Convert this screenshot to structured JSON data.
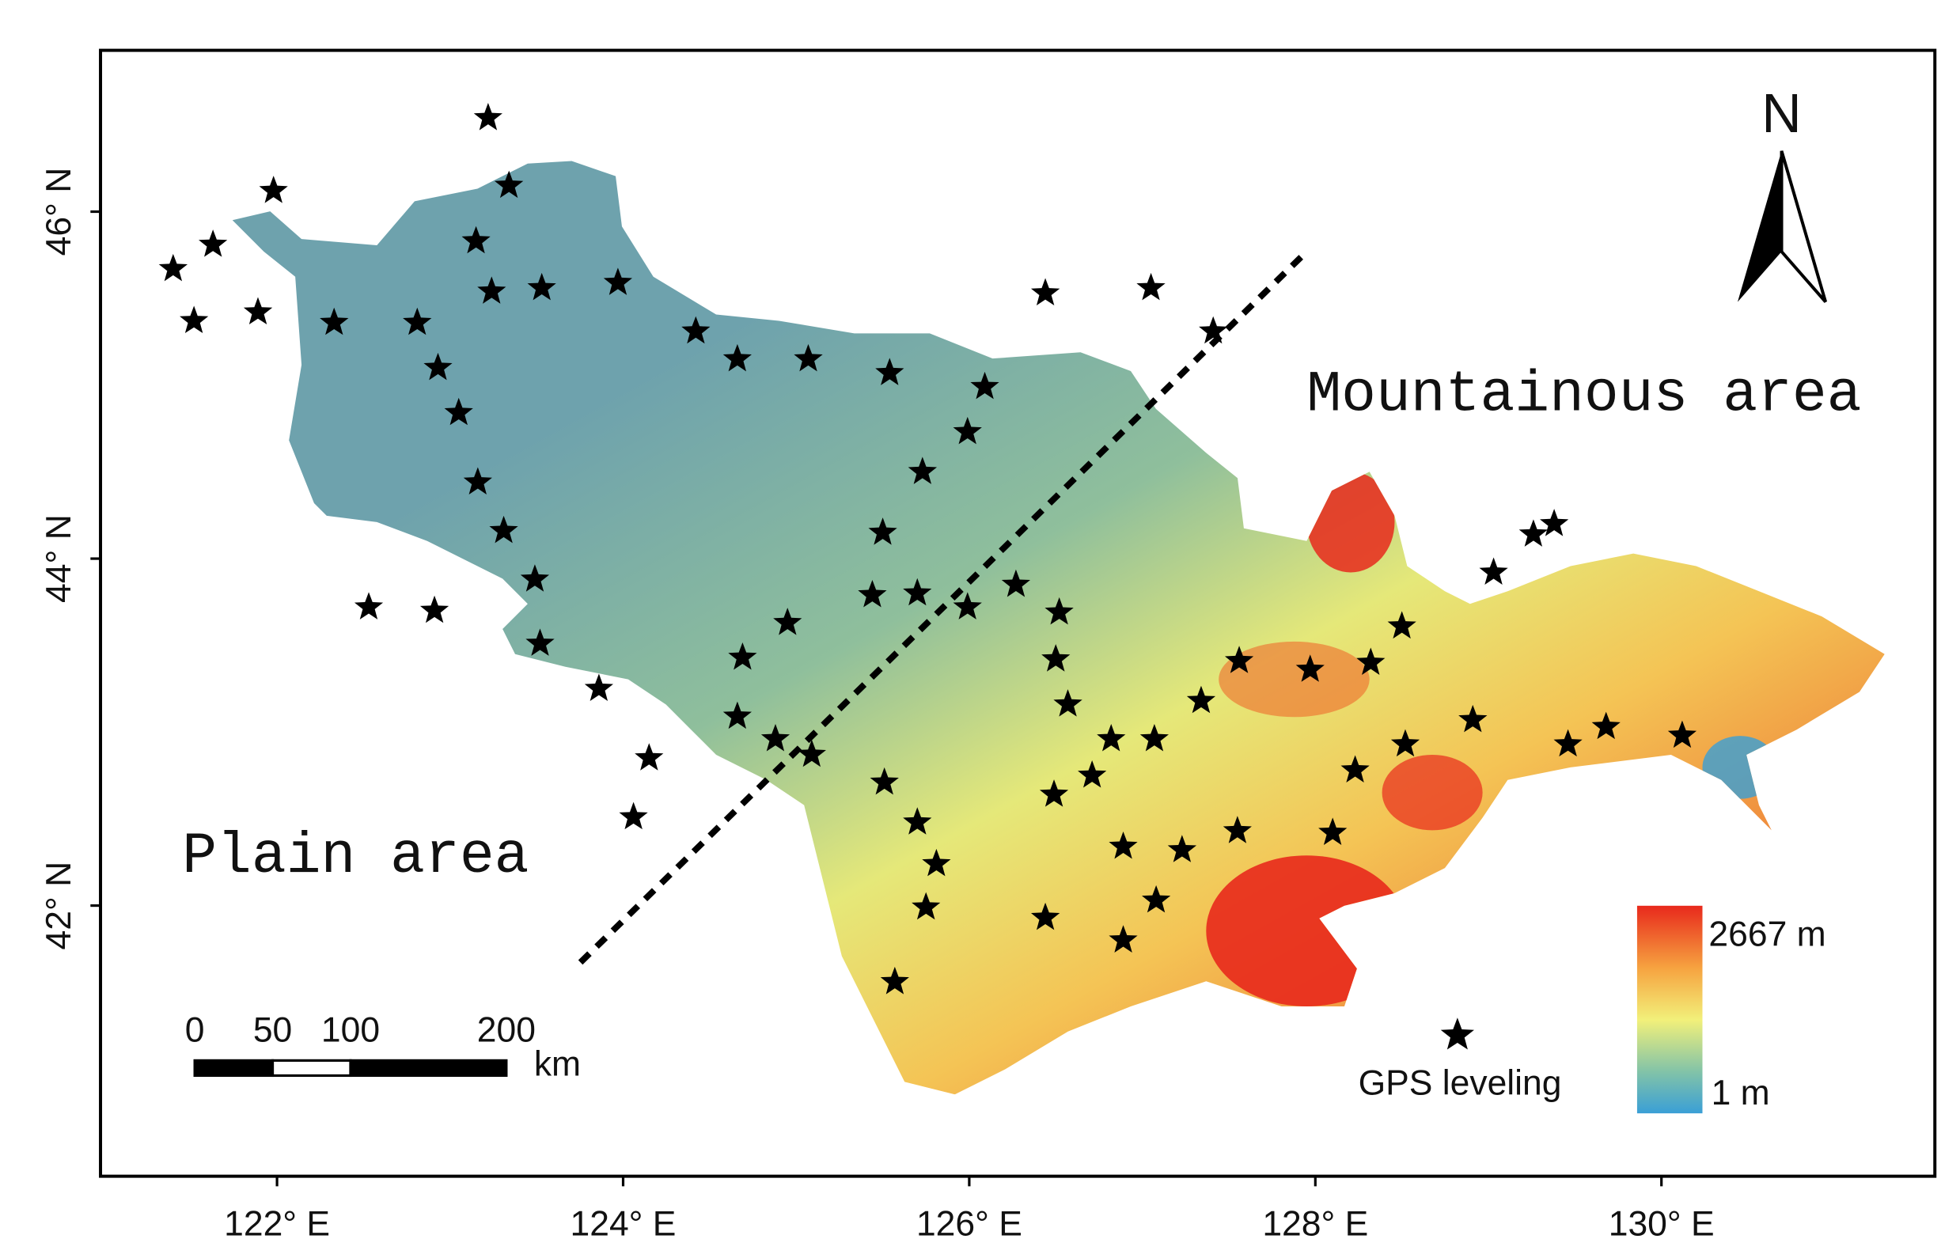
{
  "chart_data": {
    "type": "map",
    "xlim": [
      120.98,
      131.58
    ],
    "ylim": [
      40.44,
      46.93
    ],
    "xticks": [
      {
        "value": 122,
        "label": "122° E"
      },
      {
        "value": 124,
        "label": "124° E"
      },
      {
        "value": 126,
        "label": "126° E"
      },
      {
        "value": 128,
        "label": "128° E"
      },
      {
        "value": 130,
        "label": "130° E"
      }
    ],
    "yticks": [
      {
        "value": 42,
        "label": "42° N"
      },
      {
        "value": 44,
        "label": "44° N"
      },
      {
        "value": 46,
        "label": "46° N"
      }
    ],
    "annotations": [
      "Plain area",
      "Mountainous area"
    ],
    "north": "N",
    "scale_bar": {
      "ticks": [
        0,
        50,
        100,
        200
      ],
      "unit": "km"
    },
    "legend": {
      "max_label": "2667 m",
      "min_label": "1 m",
      "points_label": "GPS leveling"
    },
    "points": {
      "color": "#000000",
      "x": [
        123.22,
        121.98,
        123.34,
        121.63,
        121.4,
        123.15,
        121.52,
        121.89,
        122.33,
        123.24,
        123.53,
        123.97,
        122.81,
        122.93,
        123.05,
        124.42,
        124.66,
        125.07,
        125.54,
        126.09,
        125.99,
        125.73,
        123.16,
        123.31,
        125.5,
        123.49,
        122.53,
        122.91,
        125.44,
        125.7,
        125.99,
        126.27,
        126.52,
        124.95,
        123.52,
        124.69,
        123.86,
        124.66,
        124.88,
        125.09,
        124.15,
        124.06,
        125.51,
        125.7,
        125.81,
        125.75,
        125.57,
        126.5,
        126.57,
        126.49,
        126.71,
        126.82,
        127.07,
        127.34,
        127.56,
        127.97,
        128.32,
        128.5,
        128.52,
        128.23,
        128.91,
        129.46,
        129.68,
        130.12,
        127.55,
        128.1,
        126.89,
        127.23,
        127.08,
        126.44,
        126.89,
        127.41,
        126.44,
        127.05,
        129.03,
        129.26,
        129.38
      ],
      "y": [
        46.54,
        46.12,
        46.15,
        45.81,
        45.67,
        45.83,
        45.37,
        45.42,
        45.36,
        45.54,
        45.56,
        45.59,
        45.36,
        45.1,
        44.84,
        45.31,
        45.15,
        45.15,
        45.07,
        44.99,
        44.73,
        44.5,
        44.44,
        44.16,
        44.15,
        43.88,
        43.72,
        43.7,
        43.79,
        43.8,
        43.72,
        43.85,
        43.69,
        43.63,
        43.51,
        43.43,
        43.25,
        43.09,
        42.96,
        42.87,
        42.85,
        42.51,
        42.71,
        42.48,
        42.24,
        41.99,
        41.56,
        43.42,
        43.16,
        42.64,
        42.75,
        42.96,
        42.96,
        43.18,
        43.41,
        43.36,
        43.4,
        43.61,
        42.93,
        42.78,
        43.07,
        42.93,
        43.03,
        42.98,
        42.43,
        42.42,
        42.34,
        42.32,
        42.03,
        41.93,
        41.8,
        45.31,
        45.53,
        45.56,
        43.92,
        44.14,
        44.2
      ]
    }
  }
}
